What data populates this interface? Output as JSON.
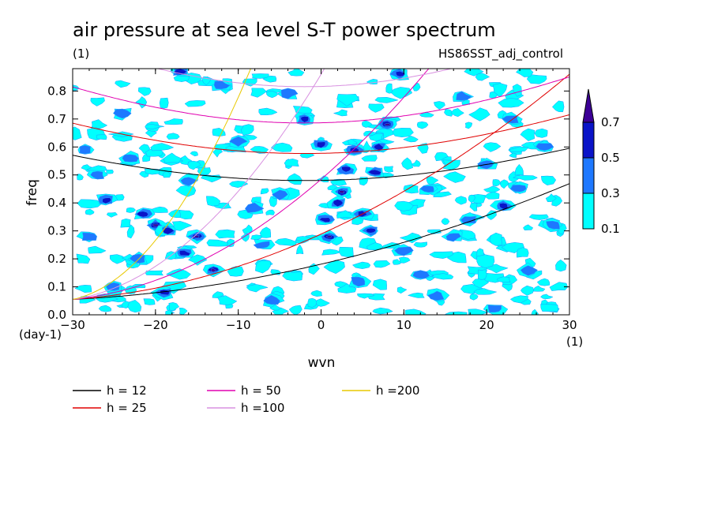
{
  "chart_data": {
    "type": "heatmap",
    "title": "air pressure at sea level S-T power spectrum",
    "subtitle_left": "(1)",
    "subtitle_right": "HS86SST_adj_control",
    "xlabel": "wvn",
    "xunit": "(1)",
    "ylabel": "freq",
    "yunit": "(day-1)",
    "xlim": [
      -30,
      30
    ],
    "ylim": [
      0,
      0.88
    ],
    "x_ticks": [
      -30,
      -20,
      -10,
      0,
      10,
      20,
      30
    ],
    "x_tick_labels": [
      "−30",
      "−20",
      "−10",
      "0",
      "10",
      "20",
      "30"
    ],
    "y_ticks": [
      0,
      0.1,
      0.2,
      0.3,
      0.4,
      0.5,
      0.6,
      0.7,
      0.8
    ],
    "y_tick_labels": [
      "0.0",
      "0.1",
      "0.2",
      "0.3",
      "0.4",
      "0.5",
      "0.6",
      "0.7",
      "0.8"
    ],
    "colorbar": {
      "levels": [
        0.1,
        0.3,
        0.5,
        0.7
      ],
      "level_labels": [
        "0.1",
        "0.3",
        "0.5",
        "0.7"
      ],
      "colors": [
        "#00ffff",
        "#1e78ff",
        "#0a14c8",
        "#3c0096"
      ]
    },
    "dispersion_curves": [
      {
        "label": "h = 12",
        "h": 12,
        "color": "#000000"
      },
      {
        "label": "h = 25",
        "h": 25,
        "color": "#e00000"
      },
      {
        "label": "h = 50",
        "h": 50,
        "color": "#e000b0"
      },
      {
        "label": "h =100",
        "h": 100,
        "color": "#d890e0"
      },
      {
        "label": "h =200",
        "h": 200,
        "color": "#e8c800"
      }
    ],
    "blobs": [
      {
        "x": -28.5,
        "y": 0.59,
        "level": 1
      },
      {
        "x": -27,
        "y": 0.5,
        "level": 1
      },
      {
        "x": -26,
        "y": 0.41,
        "level": 2
      },
      {
        "x": -28,
        "y": 0.28,
        "level": 1
      },
      {
        "x": -24,
        "y": 0.72,
        "level": 1
      },
      {
        "x": -23,
        "y": 0.56,
        "level": 1
      },
      {
        "x": -21.5,
        "y": 0.36,
        "level": 2
      },
      {
        "x": -20,
        "y": 0.32,
        "level": 3
      },
      {
        "x": -18.5,
        "y": 0.3,
        "level": 2
      },
      {
        "x": -22,
        "y": 0.2,
        "level": 1
      },
      {
        "x": -19,
        "y": 0.08,
        "level": 2
      },
      {
        "x": -25,
        "y": 0.1,
        "level": 1
      },
      {
        "x": -16,
        "y": 0.48,
        "level": 1
      },
      {
        "x": -15,
        "y": 0.28,
        "level": 3
      },
      {
        "x": -16.5,
        "y": 0.22,
        "level": 2
      },
      {
        "x": -13,
        "y": 0.16,
        "level": 3
      },
      {
        "x": -17,
        "y": 0.87,
        "level": 2
      },
      {
        "x": -12,
        "y": 0.82,
        "level": 1
      },
      {
        "x": -10,
        "y": 0.62,
        "level": 1
      },
      {
        "x": -8,
        "y": 0.38,
        "level": 1
      },
      {
        "x": -7,
        "y": 0.25,
        "level": 1
      },
      {
        "x": -5,
        "y": 0.43,
        "level": 1
      },
      {
        "x": -4,
        "y": 0.79,
        "level": 1
      },
      {
        "x": -6,
        "y": 0.05,
        "level": 1
      },
      {
        "x": -2,
        "y": 0.7,
        "level": 2
      },
      {
        "x": 0,
        "y": 0.61,
        "level": 2
      },
      {
        "x": 0.5,
        "y": 0.34,
        "level": 2
      },
      {
        "x": 1,
        "y": 0.28,
        "level": 3
      },
      {
        "x": 2,
        "y": 0.4,
        "level": 2
      },
      {
        "x": 2.5,
        "y": 0.44,
        "level": 3
      },
      {
        "x": 3,
        "y": 0.52,
        "level": 2
      },
      {
        "x": 4,
        "y": 0.59,
        "level": 2
      },
      {
        "x": 5,
        "y": 0.36,
        "level": 2
      },
      {
        "x": 6,
        "y": 0.3,
        "level": 2
      },
      {
        "x": 6.5,
        "y": 0.51,
        "level": 2
      },
      {
        "x": 7,
        "y": 0.6,
        "level": 2
      },
      {
        "x": 8,
        "y": 0.68,
        "level": 3
      },
      {
        "x": 9.5,
        "y": 0.86,
        "level": 2
      },
      {
        "x": 4.5,
        "y": 0.12,
        "level": 1
      },
      {
        "x": 10,
        "y": 0.23,
        "level": 1
      },
      {
        "x": 12,
        "y": 0.14,
        "level": 1
      },
      {
        "x": 13,
        "y": 0.45,
        "level": 1
      },
      {
        "x": 16,
        "y": 0.28,
        "level": 1
      },
      {
        "x": 18,
        "y": 0.34,
        "level": 1
      },
      {
        "x": 20,
        "y": 0.54,
        "level": 1
      },
      {
        "x": 22,
        "y": 0.39,
        "level": 2
      },
      {
        "x": 24,
        "y": 0.45,
        "level": 1
      },
      {
        "x": 25,
        "y": 0.16,
        "level": 1
      },
      {
        "x": 27,
        "y": 0.6,
        "level": 1
      },
      {
        "x": 28,
        "y": 0.32,
        "level": 1
      },
      {
        "x": 23,
        "y": 0.7,
        "level": 1
      },
      {
        "x": 17,
        "y": 0.78,
        "level": 1
      },
      {
        "x": 14,
        "y": 0.07,
        "level": 1
      },
      {
        "x": 21,
        "y": 0.02,
        "level": 1
      }
    ]
  }
}
